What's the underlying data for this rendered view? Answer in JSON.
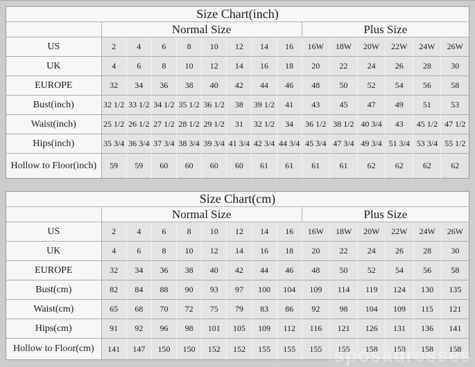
{
  "page": {
    "background_color": "#cdcdcd",
    "table_background": "#f6f6f6",
    "data_cell_color": "#e4e4e4",
    "grid_line_color": "#aaaaaa"
  },
  "watermark": "sposadresses",
  "chart_data": [
    {
      "type": "table",
      "title": "Size Chart(inch)",
      "group_headers": [
        {
          "label": "",
          "span": 1
        },
        {
          "label": "Normal Size",
          "span": 8
        },
        {
          "label": "Plus Size",
          "span": 6
        }
      ],
      "columns": [
        "2",
        "4",
        "6",
        "8",
        "10",
        "12",
        "14",
        "16",
        "16W",
        "18W",
        "20W",
        "22W",
        "24W",
        "26W"
      ],
      "rows": [
        {
          "label": "US",
          "values": [
            "2",
            "4",
            "6",
            "8",
            "10",
            "12",
            "14",
            "16",
            "16W",
            "18W",
            "20W",
            "22W",
            "24W",
            "26W"
          ]
        },
        {
          "label": "UK",
          "values": [
            "4",
            "6",
            "8",
            "10",
            "12",
            "14",
            "16",
            "18",
            "20",
            "22",
            "24",
            "26",
            "28",
            "30"
          ]
        },
        {
          "label": "EUROPE",
          "values": [
            "32",
            "34",
            "36",
            "38",
            "40",
            "42",
            "44",
            "46",
            "48",
            "50",
            "52",
            "54",
            "56",
            "58"
          ]
        },
        {
          "label": "Bust(inch)",
          "values": [
            "32 1/2",
            "33 1/2",
            "34 1/2",
            "35 1/2",
            "36 1/2",
            "38",
            "39 1/2",
            "41",
            "43",
            "45",
            "47",
            "49",
            "51",
            "53"
          ]
        },
        {
          "label": "Waist(inch)",
          "values": [
            "25 1/2",
            "26 1/2",
            "27 1/2",
            "28 1/2",
            "29 1/2",
            "31",
            "32 1/2",
            "34",
            "36 1/2",
            "38 1/2",
            "40 3/4",
            "43",
            "45 1/2",
            "47 1/2"
          ]
        },
        {
          "label": "Hips(inch)",
          "values": [
            "35 3/4",
            "36 3/4",
            "37 3/4",
            "38 3/4",
            "39 3/4",
            "41 3/4",
            "42 3/4",
            "44 3/4",
            "45 3/4",
            "47 3/4",
            "49 3/4",
            "51 3/4",
            "53 3/4",
            "55 1/2"
          ]
        },
        {
          "label": "Hollow to Floor(inch)",
          "values": [
            "59",
            "59",
            "60",
            "60",
            "60",
            "60",
            "61",
            "61",
            "61",
            "61",
            "62",
            "62",
            "62",
            "62"
          ]
        }
      ]
    },
    {
      "type": "table",
      "title": "Size Chart(cm)",
      "group_headers": [
        {
          "label": "",
          "span": 1
        },
        {
          "label": "Normal Size",
          "span": 8
        },
        {
          "label": "Plus Size",
          "span": 6
        }
      ],
      "columns": [
        "2",
        "4",
        "6",
        "8",
        "10",
        "12",
        "14",
        "16",
        "16W",
        "18W",
        "20W",
        "22W",
        "24W",
        "26W"
      ],
      "rows": [
        {
          "label": "US",
          "values": [
            "2",
            "4",
            "6",
            "8",
            "10",
            "12",
            "14",
            "16",
            "16W",
            "18W",
            "20W",
            "22W",
            "24W",
            "26W"
          ]
        },
        {
          "label": "UK",
          "values": [
            "4",
            "6",
            "8",
            "10",
            "12",
            "14",
            "16",
            "18",
            "20",
            "22",
            "24",
            "26",
            "28",
            "30"
          ]
        },
        {
          "label": "EUROPE",
          "values": [
            "32",
            "34",
            "36",
            "38",
            "40",
            "42",
            "44",
            "46",
            "48",
            "50",
            "52",
            "54",
            "56",
            "58"
          ]
        },
        {
          "label": "Bust(cm)",
          "values": [
            "82",
            "84",
            "88",
            "90",
            "93",
            "97",
            "100",
            "104",
            "109",
            "114",
            "119",
            "124",
            "130",
            "135"
          ]
        },
        {
          "label": "Waist(cm)",
          "values": [
            "65",
            "68",
            "70",
            "72",
            "75",
            "79",
            "83",
            "86",
            "92",
            "98",
            "104",
            "109",
            "115",
            "121"
          ]
        },
        {
          "label": "Hips(cm)",
          "values": [
            "91",
            "92",
            "96",
            "98",
            "101",
            "105",
            "109",
            "112",
            "116",
            "121",
            "126",
            "131",
            "136",
            "141"
          ]
        },
        {
          "label": "Hollow to Floor(cm)",
          "values": [
            "141",
            "147",
            "150",
            "150",
            "152",
            "152",
            "155",
            "155",
            "155",
            "155",
            "158",
            "158",
            "158",
            "158"
          ]
        }
      ]
    }
  ]
}
